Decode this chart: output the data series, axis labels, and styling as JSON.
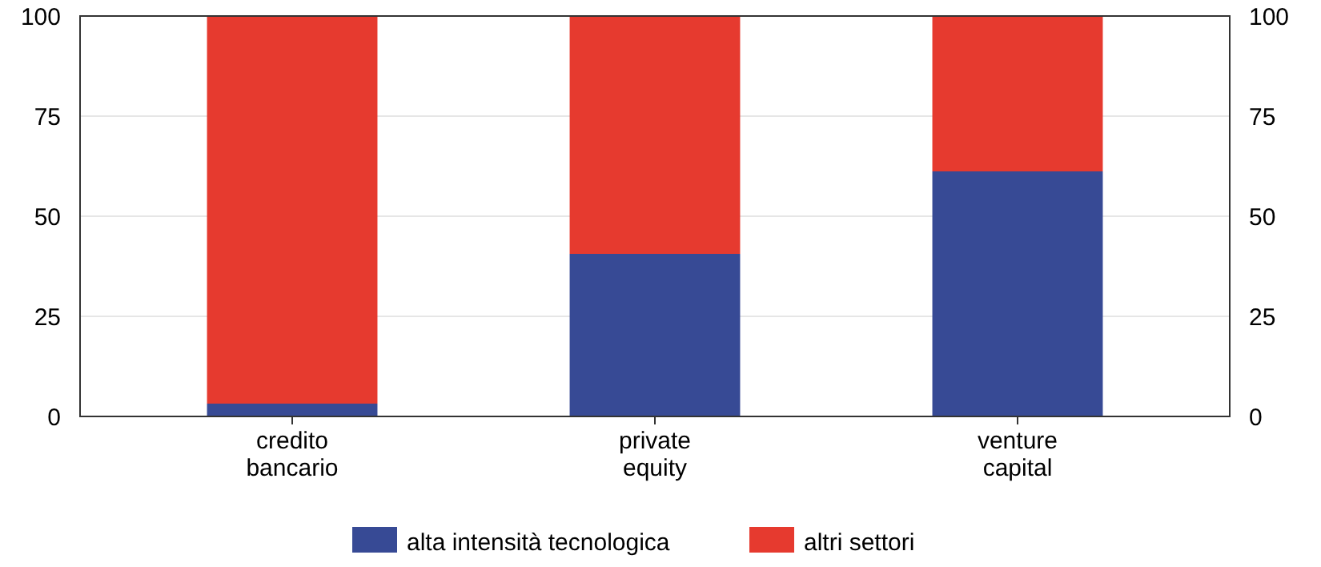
{
  "chart_data": {
    "type": "bar",
    "stacked": true,
    "categories": [
      "credito bancario",
      "private equity",
      "venture capital"
    ],
    "series": [
      {
        "name": "alta intensità tecnologica",
        "color": "#374a95",
        "values": [
          3.2,
          40.6,
          61.2
        ]
      },
      {
        "name": "altri settori",
        "color": "#e63a2f",
        "values": [
          96.8,
          59.4,
          38.8
        ]
      }
    ],
    "ylim": [
      0,
      100
    ],
    "yticks": [
      0,
      25,
      50,
      75,
      100
    ],
    "y2lim": [
      0,
      100
    ],
    "y2ticks": [
      0,
      25,
      50,
      75,
      100
    ],
    "grid": "y",
    "legend": "bottom"
  }
}
